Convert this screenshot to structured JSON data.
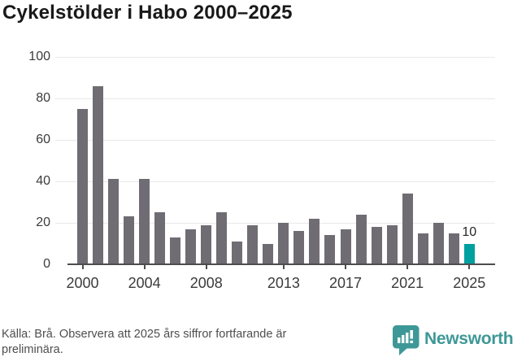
{
  "title": "Cykelstölder i Habo 2000–2025",
  "footer": {
    "source_text": "Källa: Brå. Observera att 2025 års siffror fortfarande är preliminära.",
    "brand": "Newsworthy"
  },
  "colors": {
    "bar": "#6f6d73",
    "highlight": "#00a0a0",
    "gridline": "#e9e8ea",
    "axis": "#4d4d4d",
    "logo_teal": "#3e9897"
  },
  "chart_data": {
    "type": "bar",
    "x": [
      2000,
      2001,
      2002,
      2003,
      2004,
      2005,
      2006,
      2007,
      2008,
      2009,
      2010,
      2011,
      2012,
      2013,
      2014,
      2015,
      2016,
      2017,
      2018,
      2019,
      2020,
      2021,
      2022,
      2023,
      2024,
      2025
    ],
    "values": [
      75,
      86,
      41,
      23,
      41,
      25,
      13,
      17,
      19,
      25,
      11,
      19,
      10,
      20,
      16,
      22,
      14,
      17,
      24,
      18,
      19,
      34,
      15,
      20,
      15,
      10
    ],
    "title": "Cykelstölder i Habo 2000–2025",
    "xlabel": "",
    "ylabel": "",
    "ylim": [
      0,
      100
    ],
    "yticks": [
      0,
      20,
      40,
      60,
      80,
      100
    ],
    "xtick_years": [
      2000,
      2004,
      2008,
      2013,
      2017,
      2021,
      2025
    ],
    "xtick_labels": [
      "2000",
      "2004",
      "2008",
      "2013",
      "2017",
      "2021",
      "2025"
    ],
    "grid": true,
    "legend": false,
    "highlight_year": 2025,
    "highlight_value_label": "10"
  }
}
